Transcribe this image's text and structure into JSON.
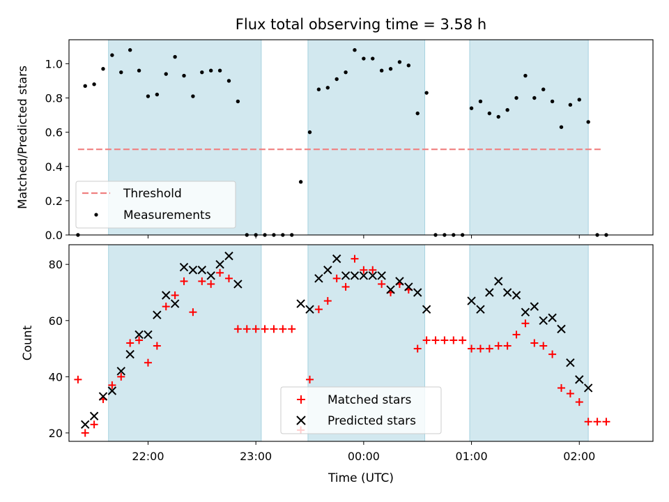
{
  "title": "Flux total observing time = 3.58 h",
  "colors": {
    "band": "#a6d2df",
    "threshold": "#f08080",
    "matched": "#ff0000",
    "predicted": "#000000",
    "measurement": "#000000"
  },
  "chart_data": [
    {
      "type": "scatter",
      "title": "Flux total observing time = 3.58 h",
      "xlabel": "",
      "ylabel": "Matched/Predicted stars",
      "xlim": [
        "21:16",
        "02:41"
      ],
      "ylim": [
        0,
        1.14
      ],
      "yticks": [
        0.0,
        0.2,
        0.4,
        0.6,
        0.8,
        1.0
      ],
      "ytick_labels": [
        "0.0",
        "0.2",
        "0.4",
        "0.6",
        "0.8",
        "1.0"
      ],
      "observing_windows": [
        [
          "21:38",
          "23:03"
        ],
        [
          "23:29",
          "00:34"
        ],
        [
          "00:59",
          "02:05"
        ]
      ],
      "legend": {
        "placement": "lower-left",
        "entries": [
          "Threshold",
          "Measurements"
        ]
      },
      "threshold": {
        "name": "Threshold",
        "value": 0.5,
        "x_range": [
          "21:21",
          "02:13"
        ]
      },
      "series": [
        {
          "name": "Measurements",
          "x": [
            "21:21",
            "21:25",
            "21:30",
            "21:35",
            "21:40",
            "21:45",
            "21:50",
            "21:55",
            "22:00",
            "22:05",
            "22:10",
            "22:15",
            "22:20",
            "22:25",
            "22:30",
            "22:35",
            "22:40",
            "22:45",
            "22:50",
            "22:55",
            "23:00",
            "23:05",
            "23:10",
            "23:15",
            "23:20",
            "23:25",
            "23:30",
            "23:35",
            "23:40",
            "23:45",
            "23:50",
            "23:55",
            "00:00",
            "00:05",
            "00:10",
            "00:15",
            "00:20",
            "00:25",
            "00:30",
            "00:35",
            "00:40",
            "00:45",
            "00:50",
            "00:55",
            "01:00",
            "01:05",
            "01:10",
            "01:15",
            "01:20",
            "01:25",
            "01:30",
            "01:35",
            "01:40",
            "01:45",
            "01:50",
            "01:55",
            "02:00",
            "02:05",
            "02:10",
            "02:15"
          ],
          "y": [
            0.0,
            0.87,
            0.88,
            0.97,
            1.05,
            0.95,
            1.08,
            0.96,
            0.81,
            0.82,
            0.94,
            1.04,
            0.93,
            0.81,
            0.95,
            0.96,
            0.96,
            0.9,
            0.78,
            0.0,
            0.0,
            0.0,
            0.0,
            0.0,
            0.0,
            0.31,
            0.6,
            0.85,
            0.86,
            0.91,
            0.95,
            1.08,
            1.03,
            1.03,
            0.96,
            0.97,
            1.01,
            0.99,
            0.71,
            0.83,
            0.0,
            0.0,
            0.0,
            0.0,
            0.74,
            0.78,
            0.71,
            0.69,
            0.73,
            0.8,
            0.93,
            0.8,
            0.85,
            0.78,
            0.63,
            0.76,
            0.79,
            0.66,
            0.0,
            0.0
          ]
        }
      ]
    },
    {
      "type": "scatter",
      "title": "",
      "xlabel": "Time (UTC)",
      "ylabel": "Count",
      "xlim": [
        "21:16",
        "02:41"
      ],
      "ylim": [
        17,
        87
      ],
      "yticks": [
        20,
        40,
        60,
        80
      ],
      "ytick_labels": [
        "20",
        "40",
        "60",
        "80"
      ],
      "xticks": [
        "22:00",
        "23:00",
        "00:00",
        "01:00",
        "02:00"
      ],
      "xtick_labels": [
        "22:00",
        "23:00",
        "00:00",
        "01:00",
        "02:00"
      ],
      "observing_windows": [
        [
          "21:38",
          "23:03"
        ],
        [
          "23:29",
          "00:34"
        ],
        [
          "00:59",
          "02:05"
        ]
      ],
      "legend": {
        "placement": "lower-center",
        "entries": [
          "Matched stars",
          "Predicted stars"
        ]
      },
      "series": [
        {
          "name": "Matched stars",
          "marker": "+",
          "x": [
            "21:21",
            "21:25",
            "21:30",
            "21:35",
            "21:40",
            "21:45",
            "21:50",
            "21:55",
            "22:00",
            "22:05",
            "22:10",
            "22:15",
            "22:20",
            "22:25",
            "22:30",
            "22:35",
            "22:40",
            "22:45",
            "22:50",
            "22:55",
            "23:00",
            "23:05",
            "23:10",
            "23:15",
            "23:20",
            "23:25",
            "23:30",
            "23:35",
            "23:40",
            "23:45",
            "23:50",
            "23:55",
            "00:00",
            "00:05",
            "00:10",
            "00:15",
            "00:20",
            "00:25",
            "00:30",
            "00:35",
            "00:40",
            "00:45",
            "00:50",
            "00:55",
            "01:00",
            "01:05",
            "01:10",
            "01:15",
            "01:20",
            "01:25",
            "01:30",
            "01:35",
            "01:40",
            "01:45",
            "01:50",
            "01:55",
            "02:00",
            "02:05",
            "02:10",
            "02:15"
          ],
          "y": [
            39,
            20,
            23,
            32,
            37,
            40,
            52,
            53,
            45,
            51,
            65,
            69,
            74,
            63,
            74,
            73,
            77,
            75,
            57,
            57,
            57,
            57,
            57,
            57,
            57,
            21,
            39,
            64,
            67,
            75,
            72,
            82,
            78,
            78,
            73,
            70,
            73,
            71,
            50,
            53,
            53,
            53,
            53,
            53,
            50,
            50,
            50,
            51,
            51,
            55,
            59,
            52,
            51,
            48,
            36,
            34,
            31,
            24,
            24,
            24
          ]
        },
        {
          "name": "Predicted stars",
          "marker": "x",
          "x": [
            "21:25",
            "21:30",
            "21:35",
            "21:40",
            "21:45",
            "21:50",
            "21:55",
            "22:00",
            "22:05",
            "22:10",
            "22:15",
            "22:20",
            "22:25",
            "22:30",
            "22:35",
            "22:40",
            "22:45",
            "22:50",
            "23:25",
            "23:30",
            "23:35",
            "23:40",
            "23:45",
            "23:50",
            "23:55",
            "00:00",
            "00:05",
            "00:10",
            "00:15",
            "00:20",
            "00:25",
            "00:30",
            "00:35",
            "01:00",
            "01:05",
            "01:10",
            "01:15",
            "01:20",
            "01:25",
            "01:30",
            "01:35",
            "01:40",
            "01:45",
            "01:50",
            "01:55",
            "02:00",
            "02:05"
          ],
          "y": [
            23,
            26,
            33,
            35,
            42,
            48,
            55,
            55,
            62,
            69,
            66,
            79,
            78,
            78,
            76,
            80,
            83,
            73,
            66,
            64,
            75,
            78,
            82,
            76,
            76,
            76,
            76,
            76,
            71,
            74,
            72,
            70,
            64,
            67,
            64,
            70,
            74,
            70,
            69,
            63,
            65,
            60,
            61,
            57,
            45,
            39,
            36
          ]
        }
      ]
    }
  ]
}
